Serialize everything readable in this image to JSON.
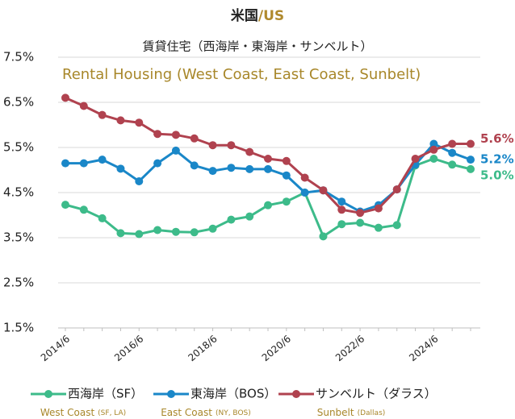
{
  "chart_data": {
    "type": "line",
    "title": "米国",
    "title_suffix": "/US",
    "subtitle": "賃貸住宅（西海岸・東海岸・サンベルト）",
    "subtitle_en": "Rental Housing (West Coast, East Coast, Sunbelt)",
    "categories": [
      "2014/6",
      null,
      null,
      null,
      "2016/6",
      null,
      null,
      null,
      "2018/6",
      null,
      null,
      null,
      "2020/6",
      null,
      null,
      null,
      "2022/6",
      null,
      null,
      null,
      "2024/6",
      null,
      null
    ],
    "series": [
      {
        "name": "西海岸（SF）",
        "name_en": "West Coast",
        "name_en_note": "(SF, LA)",
        "color": "#3dbb8a",
        "values": [
          4.23,
          4.12,
          3.93,
          3.6,
          3.58,
          3.67,
          3.63,
          3.62,
          3.7,
          3.9,
          3.97,
          4.22,
          4.3,
          4.5,
          3.53,
          3.8,
          3.83,
          3.72,
          3.78,
          5.1,
          5.25,
          5.12,
          5.02
        ],
        "value_labels": [
          null,
          null,
          null,
          null,
          null,
          null,
          null,
          null,
          null,
          null,
          null,
          null,
          null,
          null,
          null,
          null,
          null,
          null,
          null,
          null,
          null,
          null,
          "5.0%"
        ]
      },
      {
        "name": "東海岸（BOS）",
        "name_en": "East Coast",
        "name_en_note": "(NY, BOS)",
        "color": "#1a87c8",
        "values": [
          5.15,
          5.15,
          5.23,
          5.03,
          4.75,
          5.15,
          5.43,
          5.1,
          4.98,
          5.05,
          5.02,
          5.02,
          4.88,
          4.5,
          4.55,
          4.3,
          4.08,
          4.22,
          4.57,
          5.12,
          5.58,
          5.38,
          5.23
        ],
        "value_labels": [
          null,
          null,
          null,
          null,
          null,
          null,
          null,
          null,
          null,
          null,
          null,
          null,
          null,
          null,
          null,
          null,
          null,
          null,
          null,
          null,
          null,
          null,
          "5.2%"
        ]
      },
      {
        "name": "サンベルト（ダラス）",
        "name_en": "Sunbelt",
        "name_en_note": "(Dallas)",
        "color": "#b0424f",
        "values": [
          6.6,
          6.42,
          6.22,
          6.1,
          6.05,
          5.8,
          5.78,
          5.7,
          5.55,
          5.55,
          5.4,
          5.25,
          5.2,
          4.83,
          4.55,
          4.12,
          4.05,
          4.15,
          4.57,
          5.25,
          5.45,
          5.58,
          5.58
        ],
        "value_labels": [
          null,
          null,
          null,
          null,
          null,
          null,
          null,
          null,
          null,
          null,
          null,
          null,
          null,
          null,
          null,
          null,
          null,
          null,
          null,
          null,
          null,
          null,
          "5.6%"
        ]
      }
    ],
    "ylim": [
      1.5,
      7.5
    ],
    "yticks": [
      {
        "value": 1.5,
        "label": "1.5%"
      },
      {
        "value": 2.5,
        "label": "2.5%"
      },
      {
        "value": 3.5,
        "label": "3.5%"
      },
      {
        "value": 4.5,
        "label": "4.5%"
      },
      {
        "value": 5.5,
        "label": "5.5%"
      },
      {
        "value": 6.5,
        "label": "6.5%"
      },
      {
        "value": 7.5,
        "label": "7.5%"
      }
    ],
    "grid": true
  }
}
